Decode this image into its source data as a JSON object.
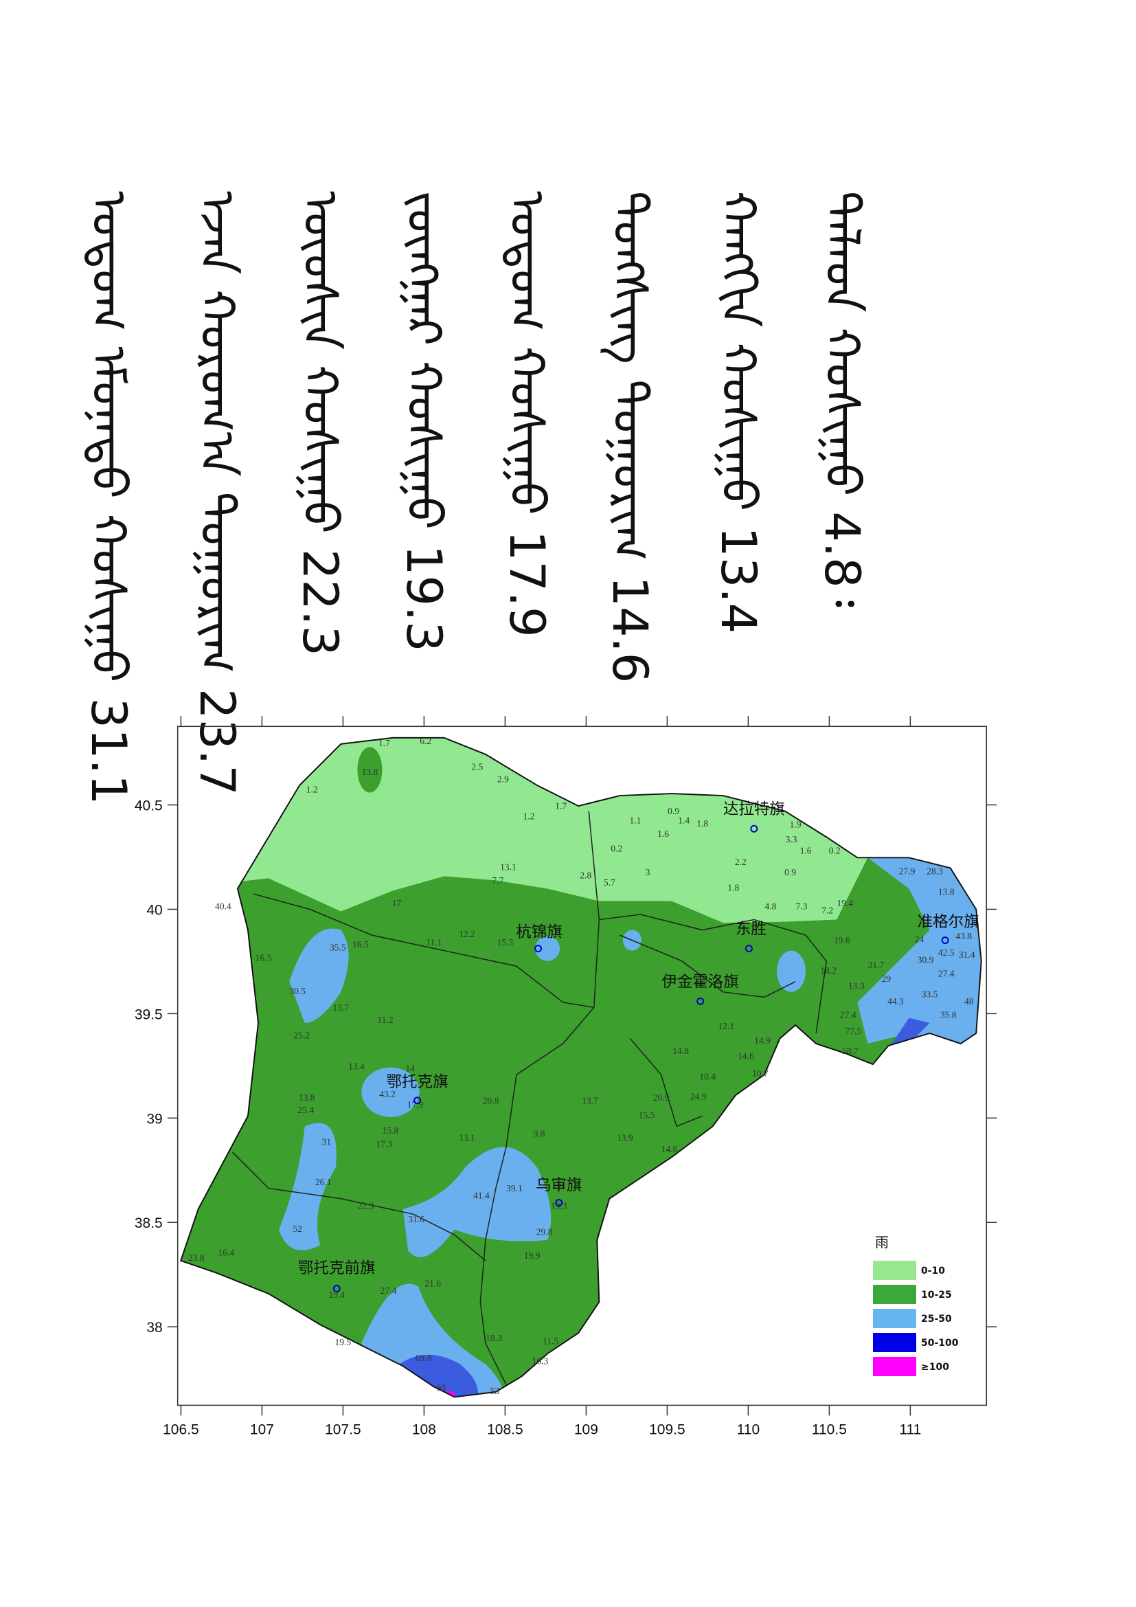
{
  "text_lines": [
    "ᠳᠠᠯᠠᠳ ᠬᠣᠰᠢᠭᠤ 4.8᠄",
    "ᠬᠠᠩᠭᠢᠨ ᠬᠣᠰᠢᠭᠤ 13.4",
    "ᠳᠣᠩᠰᠢᠩ ᠲᠣᠭᠣᠷᠢᠭ 14.6",
    "ᠣᠲᠣᠭ ᠬᠣᠰᠢᠭᠤ 17.9",
    "ᠵᠦᠩᠭᠠᠷ ᠬᠣᠰᠢᠭᠤ 19.3",
    "ᠦᠦᠰᠢᠨ ᠬᠣᠰᠢᠭᠤ 22.3",
    "ᠡᠵᠡᠨ ᠬᠣᠷᠤᠭ᠎ᠠ ᠲᠣᠭᠣᠷᠢᠭ 23.7",
    "ᠣᠲᠣᠭ ᠡᠮᠦᠨᠡᠲᠦ ᠬᠣᠰᠢᠭᠤ 31.1"
  ],
  "map": {
    "xlim": [
      106.48,
      111.47
    ],
    "ylim": [
      37.624,
      40.876
    ],
    "xticks": [
      106.5,
      107,
      107.5,
      108,
      108.5,
      109,
      109.5,
      110,
      110.5,
      111
    ],
    "yticks": [
      38,
      38.5,
      39,
      39.5,
      40,
      40.5
    ],
    "legend": {
      "title": "雨",
      "items": [
        {
          "label": "0-10",
          "color": "#98e690"
        },
        {
          "label": "10-25",
          "color": "#3aa83a"
        },
        {
          "label": "25-50",
          "color": "#66b6f0"
        },
        {
          "label": "50-100",
          "color": "#0000e6"
        },
        {
          "label": "≥100",
          "color": "#ff00ff"
        }
      ]
    },
    "cities": [
      "达拉特旗",
      "杭锦旗",
      "东胜",
      "准格尔旗",
      "伊金霍洛旗",
      "鄂托克旗",
      "乌审旗",
      "鄂托克前旗"
    ],
    "stations": [
      "1.7",
      "6.2",
      "13.8",
      "2.5",
      "2.9",
      "1.2",
      "1.7",
      "1.2",
      "0.9",
      "1.4",
      "1.8",
      "1.9",
      "1.1",
      "1.6",
      "3.3",
      "0.2",
      "2.2",
      "1.6",
      "0.2",
      "3",
      "0.9",
      "1.8",
      "2.8",
      "5.7",
      "7.7",
      "13.1",
      "17",
      "4.8",
      "7.3",
      "7.2",
      "19.4",
      "27.9",
      "28.3",
      "13.8",
      "24",
      "30.9",
      "27.4",
      "40.4",
      "35.5",
      "16.5",
      "11.1",
      "12.2",
      "15.3",
      "16.5",
      "30.5",
      "13.7",
      "11.2",
      "25.2",
      "13.4",
      "14",
      "43.2",
      "17.9",
      "13.8",
      "25.4",
      "20.8",
      "31",
      "15.8",
      "17.3",
      "13.1",
      "9.8",
      "13.7",
      "13.9",
      "15.5",
      "20.9",
      "24.9",
      "14.6",
      "26.1",
      "22.3",
      "41.4",
      "39.1",
      "19.3",
      "31.6",
      "52",
      "29.8",
      "23.8",
      "16.4",
      "19.9",
      "21.6",
      "27.4",
      "19.4",
      "19.5",
      "18.3",
      "11.5",
      "16.3",
      "69.8",
      "93",
      "53",
      "19.6",
      "31.7",
      "29",
      "18.2",
      "13.3",
      "44.3",
      "33.5",
      "48",
      "35.8",
      "27.4",
      "77.5",
      "58.7",
      "12.1",
      "14.8",
      "10.4",
      "14.6",
      "10.7",
      "14.9",
      "42.5",
      "43.8",
      "31.4"
    ]
  }
}
